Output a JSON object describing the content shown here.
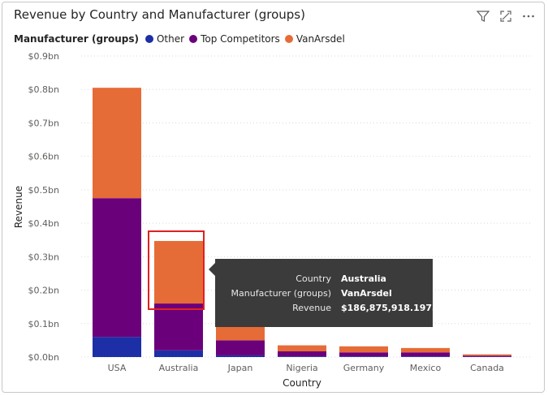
{
  "header": {
    "title": "Revenue by Country and Manufacturer (groups)",
    "icons": [
      "filter-icon",
      "focus-mode-icon",
      "more-options-icon"
    ]
  },
  "legend": {
    "title": "Manufacturer (groups)",
    "items": [
      {
        "label": "Other",
        "color": "#1c2fa6"
      },
      {
        "label": "Top Competitors",
        "color": "#6b007b"
      },
      {
        "label": "VanArsdel",
        "color": "#e66c37"
      }
    ]
  },
  "tooltip": {
    "rows": [
      {
        "key": "Country",
        "value": "Australia"
      },
      {
        "key": "Manufacturer (groups)",
        "value": "VanArsdel"
      },
      {
        "key": "Revenue",
        "value": "$186,875,918.1975"
      }
    ]
  },
  "chart_data": {
    "type": "bar",
    "stacked": true,
    "title": "Revenue by Country and Manufacturer (groups)",
    "xlabel": "Country",
    "ylabel": "Revenue",
    "ylim": [
      0,
      0.9
    ],
    "yticks": [
      0,
      0.1,
      0.2,
      0.3,
      0.4,
      0.5,
      0.6,
      0.7,
      0.8,
      0.9
    ],
    "ytick_labels": [
      "$0.0bn",
      "$0.1bn",
      "$0.2bn",
      "$0.3bn",
      "$0.4bn",
      "$0.5bn",
      "$0.6bn",
      "$0.7bn",
      "$0.8bn",
      "$0.9bn"
    ],
    "grid": true,
    "legend_position": "top-left",
    "categories": [
      "USA",
      "Australia",
      "Japan",
      "Nigeria",
      "Germany",
      "Mexico",
      "Canada"
    ],
    "series": [
      {
        "name": "Other",
        "color": "#1c2fa6",
        "values": [
          0.06,
          0.02,
          0.005,
          0.002,
          0.002,
          0.002,
          0.001
        ]
      },
      {
        "name": "Top Competitors",
        "color": "#6b007b",
        "values": [
          0.415,
          0.14,
          0.045,
          0.015,
          0.012,
          0.012,
          0.003
        ]
      },
      {
        "name": "VanArsdel",
        "color": "#e66c37",
        "values": [
          0.33,
          0.187,
          0.04,
          0.018,
          0.018,
          0.013,
          0.004
        ]
      }
    ]
  }
}
